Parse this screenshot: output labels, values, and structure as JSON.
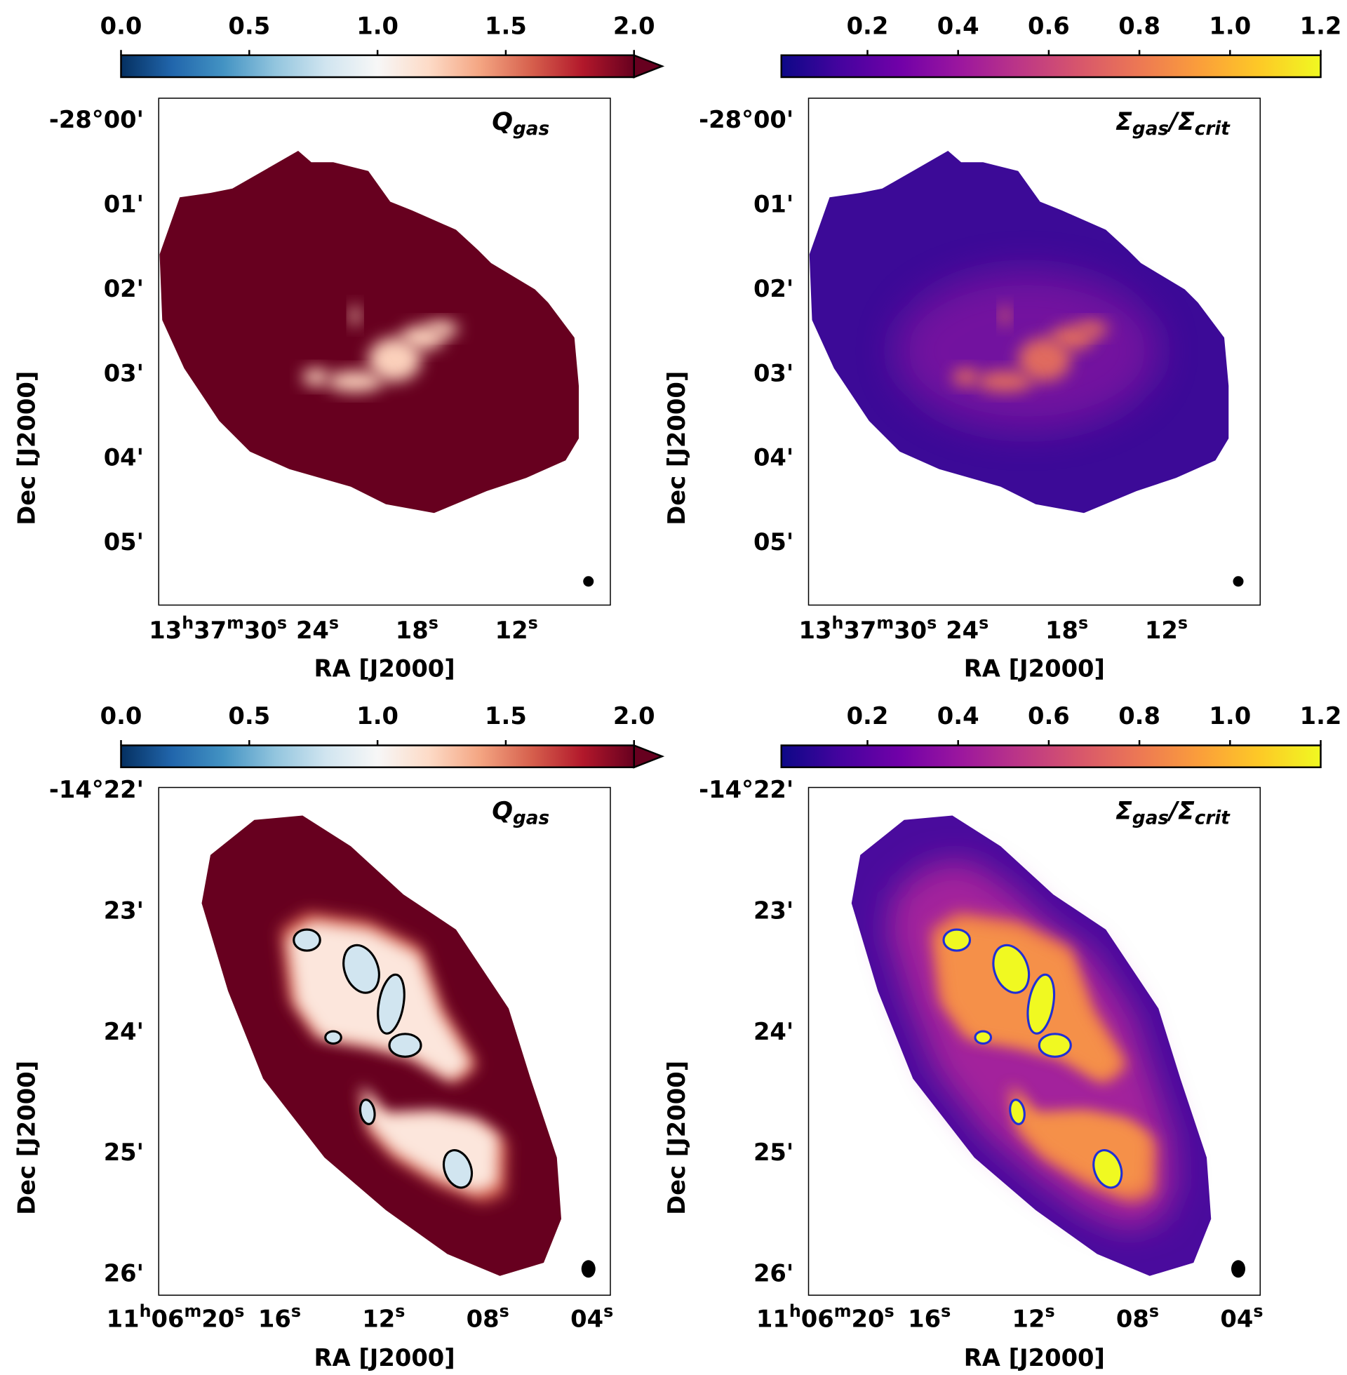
{
  "chart_data": [
    {
      "type": "image",
      "label": [
        "Q",
        "gas"
      ],
      "colormap": "RdBu_r",
      "colorbar_extend": "max",
      "clim": [
        0,
        2
      ],
      "cticks": [
        {
          "value": 0,
          "label": "0.0"
        },
        {
          "value": 0.5,
          "label": "0.5"
        },
        {
          "value": 1,
          "label": "1.0"
        },
        {
          "value": 1.5,
          "label": "1.5"
        },
        {
          "value": 2,
          "label": "2.0"
        }
      ],
      "xlabel": "RA [J2000]",
      "ylabel": "Dec [J2000]",
      "xlim": [
        33.57,
        6.34
      ],
      "xticks": [
        {
          "value": 30,
          "label": "13h37m30s"
        },
        {
          "value": 24,
          "label": "24s"
        },
        {
          "value": 18,
          "label": "18s"
        },
        {
          "value": 12,
          "label": "12s"
        }
      ],
      "ylim": [
        -1685.73,
        -1679.73
      ],
      "yticks": [
        {
          "value": -1680,
          "label": "-28°00'"
        },
        {
          "value": -1681,
          "label": "01'"
        },
        {
          "value": -1682,
          "label": "02'"
        },
        {
          "value": -1683,
          "label": "03'"
        },
        {
          "value": -1684,
          "label": "04'"
        },
        {
          "value": -1685,
          "label": "05'"
        }
      ]
    },
    {
      "type": "image",
      "label": [
        "Σ",
        "gas",
        "/Σ",
        "crit"
      ],
      "colormap": "plasma",
      "clim": [
        0.01,
        1.2
      ],
      "cticks": [
        0.2,
        0.4,
        0.6,
        0.8,
        {
          "value": 1,
          "label": "1.0"
        },
        1.2
      ],
      "xlabel": "RA [J2000]",
      "ylabel": "Dec [J2000]",
      "xlim": [
        33.57,
        6.34
      ],
      "xticks": [
        {
          "value": 30,
          "label": "13h37m30s"
        },
        {
          "value": 24,
          "label": "24s"
        },
        {
          "value": 18,
          "label": "18s"
        },
        {
          "value": 12,
          "label": "12s"
        }
      ],
      "ylim": [
        -1685.73,
        -1679.73
      ],
      "yticks": [
        {
          "value": -1680,
          "label": "-28°00'"
        },
        {
          "value": -1681,
          "label": "01'"
        },
        {
          "value": -1682,
          "label": "02'"
        },
        {
          "value": -1683,
          "label": "03'"
        },
        {
          "value": -1684,
          "label": "04'"
        },
        {
          "value": -1685,
          "label": "05'"
        }
      ]
    },
    {
      "type": "image",
      "label": [
        "Q",
        "gas"
      ],
      "colormap": "RdBu_r",
      "colorbar_extend": "max",
      "clim": [
        0,
        2
      ],
      "cticks": [
        {
          "value": 0,
          "label": "0.0"
        },
        {
          "value": 0.5,
          "label": "0.5"
        },
        {
          "value": 1,
          "label": "1.0"
        },
        {
          "value": 1.5,
          "label": "1.5"
        },
        {
          "value": 2,
          "label": "2.0"
        }
      ],
      "xlabel": "RA [J2000]",
      "ylabel": "Dec [J2000]",
      "xlim": [
        20.64,
        3.29
      ],
      "xticks": [
        {
          "value": 20,
          "label": "11h06m20s"
        },
        {
          "value": 16,
          "label": "16s"
        },
        {
          "value": 12,
          "label": "12s"
        },
        {
          "value": 8,
          "label": "08s"
        },
        {
          "value": 4,
          "label": "04s"
        }
      ],
      "ylim": [
        -866.17,
        -861.97
      ],
      "yticks": [
        {
          "value": -862,
          "label": "-14°22'"
        },
        {
          "value": -863,
          "label": "23'"
        },
        {
          "value": -864,
          "label": "24'"
        },
        {
          "value": -865,
          "label": "25'"
        },
        {
          "value": -866,
          "label": "26'"
        }
      ]
    },
    {
      "type": "image",
      "label": [
        "Σ",
        "gas",
        "/Σ",
        "crit"
      ],
      "colormap": "plasma",
      "clim": [
        0.01,
        1.2
      ],
      "cticks": [
        0.2,
        0.4,
        0.6,
        0.8,
        {
          "value": 1,
          "label": "1.0"
        },
        1.2
      ],
      "xlabel": "RA [J2000]",
      "ylabel": "Dec [J2000]",
      "xlim": [
        20.64,
        3.29
      ],
      "xticks": [
        {
          "value": 20,
          "label": "11h06m20s"
        },
        {
          "value": 16,
          "label": "16s"
        },
        {
          "value": 12,
          "label": "12s"
        },
        {
          "value": 8,
          "label": "08s"
        },
        {
          "value": 4,
          "label": "04s"
        }
      ],
      "ylim": [
        -866.17,
        -861.97
      ],
      "yticks": [
        {
          "value": -862,
          "label": "-14°22'"
        },
        {
          "value": -863,
          "label": "23'"
        },
        {
          "value": -864,
          "label": "24'"
        },
        {
          "value": -865,
          "label": "25'"
        },
        {
          "value": -866,
          "label": "26'"
        }
      ]
    }
  ]
}
